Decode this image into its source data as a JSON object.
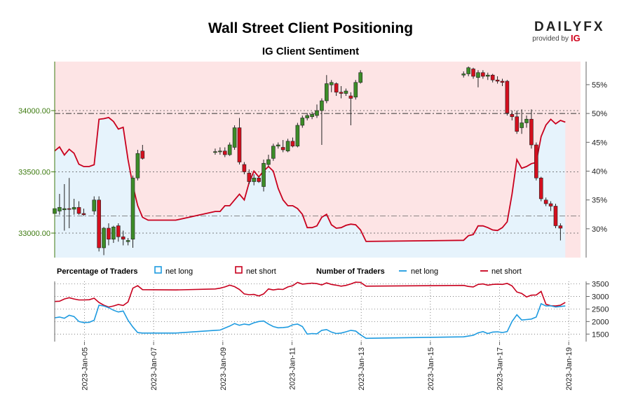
{
  "brand": {
    "name": "DAILYFX",
    "provided_by": "provided by",
    "ig": "IG",
    "color": "#d0021b"
  },
  "chart_data": {
    "type": "candlestick+line",
    "title": "Wall Street Client Positioning",
    "subtitle": "IG Client Sentiment",
    "price_axis": {
      "min": 32800,
      "max": 34400,
      "ticks": [
        33000,
        33500,
        34000
      ],
      "tick_labels": [
        "33000.00",
        "33500.00",
        "34000.00"
      ]
    },
    "sentiment_axis": {
      "min": 25,
      "max": 59,
      "ticks": [
        30,
        35,
        40,
        45,
        50,
        55
      ],
      "tick_labels": [
        "30%",
        "35%",
        "40%",
        "45%",
        "50%",
        "55%"
      ]
    },
    "count_axis": {
      "min": 1200,
      "max": 3600,
      "ticks": [
        1500,
        2000,
        2500,
        3000,
        3500
      ],
      "tick_labels": [
        "1500",
        "2000",
        "2500",
        "3000",
        "3500"
      ]
    },
    "x_range": [
      0,
      15.2
    ],
    "date_labels": [
      "2023-Jan-05",
      "2023-Jan-07",
      "2023-Jan-09",
      "2023-Jan-11",
      "2023-Jan-13",
      "2023-Jan-15",
      "2023-Jan-17",
      "2023-Jan-19"
    ],
    "date_positions": [
      0.86,
      2.86,
      4.86,
      6.86,
      8.86,
      10.86,
      12.86,
      14.86
    ],
    "candles": [
      {
        "t": 0.0,
        "o": 33160,
        "h": 33220,
        "l": 33120,
        "c": 33200
      },
      {
        "t": 0.14,
        "o": 33180,
        "h": 33320,
        "l": 33150,
        "c": 33210
      },
      {
        "t": 0.28,
        "o": 33190,
        "h": 33400,
        "l": 33020,
        "c": 33200
      },
      {
        "t": 0.42,
        "o": 33200,
        "h": 33450,
        "l": 33040,
        "c": 33195
      },
      {
        "t": 0.56,
        "o": 33195,
        "h": 33280,
        "l": 33150,
        "c": 33210
      },
      {
        "t": 0.7,
        "o": 33210,
        "h": 33260,
        "l": 33150,
        "c": 33160
      },
      {
        "t": 0.84,
        "o": 33160,
        "h": 33200,
        "l": 33140,
        "c": 33150
      },
      {
        "t": 1.14,
        "o": 33180,
        "h": 33300,
        "l": 33150,
        "c": 33270
      },
      {
        "t": 1.28,
        "o": 33270,
        "h": 33300,
        "l": 32850,
        "c": 32880
      },
      {
        "t": 1.42,
        "o": 32880,
        "h": 33050,
        "l": 32820,
        "c": 33040
      },
      {
        "t": 1.56,
        "o": 33040,
        "h": 33080,
        "l": 32900,
        "c": 32950
      },
      {
        "t": 1.7,
        "o": 32950,
        "h": 33060,
        "l": 32920,
        "c": 33050
      },
      {
        "t": 1.84,
        "o": 33060,
        "h": 33080,
        "l": 32930,
        "c": 32970
      },
      {
        "t": 1.98,
        "o": 32970,
        "h": 33020,
        "l": 32900,
        "c": 32950
      },
      {
        "t": 2.12,
        "o": 32930,
        "h": 32960,
        "l": 32900,
        "c": 32940
      },
      {
        "t": 2.26,
        "o": 32950,
        "h": 33470,
        "l": 32880,
        "c": 33450
      },
      {
        "t": 2.4,
        "o": 33450,
        "h": 33680,
        "l": 33430,
        "c": 33650
      },
      {
        "t": 2.54,
        "o": 33670,
        "h": 33720,
        "l": 33600,
        "c": 33610
      },
      {
        "t": 4.64,
        "o": 33660,
        "h": 33690,
        "l": 33640,
        "c": 33665
      },
      {
        "t": 4.78,
        "o": 33665,
        "h": 33700,
        "l": 33640,
        "c": 33670
      },
      {
        "t": 4.92,
        "o": 33670,
        "h": 33700,
        "l": 33620,
        "c": 33640
      },
      {
        "t": 5.06,
        "o": 33640,
        "h": 33740,
        "l": 33630,
        "c": 33720
      },
      {
        "t": 5.2,
        "o": 33700,
        "h": 33880,
        "l": 33680,
        "c": 33860
      },
      {
        "t": 5.34,
        "o": 33860,
        "h": 33940,
        "l": 33560,
        "c": 33580
      },
      {
        "t": 5.48,
        "o": 33560,
        "h": 33580,
        "l": 33480,
        "c": 33500
      },
      {
        "t": 5.62,
        "o": 33490,
        "h": 33520,
        "l": 33400,
        "c": 33420
      },
      {
        "t": 5.76,
        "o": 33420,
        "h": 33480,
        "l": 33390,
        "c": 33450
      },
      {
        "t": 5.9,
        "o": 33450,
        "h": 33460,
        "l": 33410,
        "c": 33420
      },
      {
        "t": 6.04,
        "o": 33380,
        "h": 33600,
        "l": 33340,
        "c": 33570
      },
      {
        "t": 6.18,
        "o": 33560,
        "h": 33640,
        "l": 33540,
        "c": 33600
      },
      {
        "t": 6.32,
        "o": 33610,
        "h": 33730,
        "l": 33590,
        "c": 33710
      },
      {
        "t": 6.46,
        "o": 33710,
        "h": 33740,
        "l": 33690,
        "c": 33720
      },
      {
        "t": 6.6,
        "o": 33700,
        "h": 33760,
        "l": 33660,
        "c": 33680
      },
      {
        "t": 6.74,
        "o": 33670,
        "h": 33770,
        "l": 33660,
        "c": 33750
      },
      {
        "t": 6.88,
        "o": 33750,
        "h": 33780,
        "l": 33700,
        "c": 33710
      },
      {
        "t": 7.02,
        "o": 33710,
        "h": 33900,
        "l": 33700,
        "c": 33880
      },
      {
        "t": 7.16,
        "o": 33880,
        "h": 33960,
        "l": 33860,
        "c": 33940
      },
      {
        "t": 7.3,
        "o": 33940,
        "h": 33980,
        "l": 33920,
        "c": 33960
      },
      {
        "t": 7.44,
        "o": 33950,
        "h": 33990,
        "l": 33930,
        "c": 33970
      },
      {
        "t": 7.58,
        "o": 33960,
        "h": 34050,
        "l": 33940,
        "c": 34000
      },
      {
        "t": 7.72,
        "o": 34000,
        "h": 34100,
        "l": 33720,
        "c": 34080
      },
      {
        "t": 7.86,
        "o": 34080,
        "h": 34290,
        "l": 34060,
        "c": 34220
      },
      {
        "t": 8.0,
        "o": 34210,
        "h": 34250,
        "l": 34150,
        "c": 34230
      },
      {
        "t": 8.14,
        "o": 34220,
        "h": 34230,
        "l": 34120,
        "c": 34150
      },
      {
        "t": 8.28,
        "o": 34150,
        "h": 34200,
        "l": 34100,
        "c": 34140
      },
      {
        "t": 8.42,
        "o": 34140,
        "h": 34180,
        "l": 34120,
        "c": 34160
      },
      {
        "t": 8.56,
        "o": 34120,
        "h": 34150,
        "l": 33880,
        "c": 34100
      },
      {
        "t": 8.7,
        "o": 34110,
        "h": 34250,
        "l": 34090,
        "c": 34230
      },
      {
        "t": 8.84,
        "o": 34230,
        "h": 34330,
        "l": 34220,
        "c": 34310
      },
      {
        "t": 11.82,
        "o": 34290,
        "h": 34320,
        "l": 34270,
        "c": 34300
      },
      {
        "t": 11.96,
        "o": 34300,
        "h": 34360,
        "l": 34280,
        "c": 34350
      },
      {
        "t": 12.1,
        "o": 34340,
        "h": 34350,
        "l": 34260,
        "c": 34280
      },
      {
        "t": 12.24,
        "o": 34270,
        "h": 34330,
        "l": 34190,
        "c": 34310
      },
      {
        "t": 12.38,
        "o": 34310,
        "h": 34330,
        "l": 34260,
        "c": 34280
      },
      {
        "t": 12.52,
        "o": 34280,
        "h": 34310,
        "l": 34250,
        "c": 34290
      },
      {
        "t": 12.66,
        "o": 34290,
        "h": 34300,
        "l": 34230,
        "c": 34250
      },
      {
        "t": 12.8,
        "o": 34250,
        "h": 34280,
        "l": 34220,
        "c": 34240
      },
      {
        "t": 12.94,
        "o": 34240,
        "h": 34260,
        "l": 34200,
        "c": 34230
      },
      {
        "t": 13.08,
        "o": 34240,
        "h": 34250,
        "l": 33960,
        "c": 33980
      },
      {
        "t": 13.22,
        "o": 33970,
        "h": 34000,
        "l": 33920,
        "c": 33950
      },
      {
        "t": 13.36,
        "o": 33950,
        "h": 34000,
        "l": 33810,
        "c": 33830
      },
      {
        "t": 13.5,
        "o": 33860,
        "h": 34010,
        "l": 33810,
        "c": 33900
      },
      {
        "t": 13.64,
        "o": 33900,
        "h": 33960,
        "l": 33860,
        "c": 33930
      },
      {
        "t": 13.78,
        "o": 33930,
        "h": 34010,
        "l": 33690,
        "c": 33720
      },
      {
        "t": 13.92,
        "o": 33720,
        "h": 33740,
        "l": 33430,
        "c": 33450
      },
      {
        "t": 14.06,
        "o": 33450,
        "h": 33460,
        "l": 33260,
        "c": 33280
      },
      {
        "t": 14.2,
        "o": 33270,
        "h": 33290,
        "l": 33220,
        "c": 33240
      },
      {
        "t": 14.34,
        "o": 33240,
        "h": 33260,
        "l": 33180,
        "c": 33220
      },
      {
        "t": 14.48,
        "o": 33220,
        "h": 33240,
        "l": 33040,
        "c": 33060
      },
      {
        "t": 14.62,
        "o": 33060,
        "h": 33080,
        "l": 32940,
        "c": 33040
      }
    ],
    "sentiment_long_pct": [
      [
        0,
        43.5
      ],
      [
        0.14,
        44.2
      ],
      [
        0.28,
        42.8
      ],
      [
        0.42,
        43.8
      ],
      [
        0.56,
        43.1
      ],
      [
        0.7,
        41.2
      ],
      [
        0.84,
        40.8
      ],
      [
        1.0,
        40.8
      ],
      [
        1.14,
        41.1
      ],
      [
        1.28,
        49
      ],
      [
        1.42,
        49.1
      ],
      [
        1.56,
        49.3
      ],
      [
        1.7,
        48.6
      ],
      [
        1.84,
        47.3
      ],
      [
        1.98,
        47.6
      ],
      [
        2.12,
        42
      ],
      [
        2.26,
        37.5
      ],
      [
        2.4,
        34
      ],
      [
        2.54,
        32
      ],
      [
        2.7,
        31.5
      ],
      [
        3.5,
        31.5
      ],
      [
        4.64,
        33
      ],
      [
        4.78,
        33
      ],
      [
        4.92,
        34
      ],
      [
        5.06,
        34
      ],
      [
        5.2,
        35
      ],
      [
        5.34,
        36
      ],
      [
        5.48,
        35
      ],
      [
        5.62,
        38
      ],
      [
        5.76,
        40
      ],
      [
        5.9,
        39
      ],
      [
        6.04,
        40
      ],
      [
        6.18,
        40.8
      ],
      [
        6.32,
        40
      ],
      [
        6.46,
        37
      ],
      [
        6.6,
        35
      ],
      [
        6.74,
        34
      ],
      [
        6.88,
        34
      ],
      [
        7.02,
        33.5
      ],
      [
        7.16,
        32.5
      ],
      [
        7.3,
        30.2
      ],
      [
        7.44,
        30.2
      ],
      [
        7.58,
        30.5
      ],
      [
        7.72,
        32
      ],
      [
        7.86,
        32.5
      ],
      [
        8.0,
        30.7
      ],
      [
        8.14,
        30.1
      ],
      [
        8.28,
        30.2
      ],
      [
        8.42,
        30.6
      ],
      [
        8.56,
        30.8
      ],
      [
        8.7,
        30.7
      ],
      [
        8.84,
        29.8
      ],
      [
        9.0,
        27.8
      ],
      [
        11.82,
        28
      ],
      [
        11.96,
        28.8
      ],
      [
        12.1,
        29
      ],
      [
        12.24,
        30.5
      ],
      [
        12.38,
        30.5
      ],
      [
        12.52,
        30.2
      ],
      [
        12.66,
        29.8
      ],
      [
        12.8,
        29.7
      ],
      [
        12.94,
        30.2
      ],
      [
        13.08,
        31.2
      ],
      [
        13.22,
        36
      ],
      [
        13.36,
        42
      ],
      [
        13.5,
        40.5
      ],
      [
        13.64,
        40.8
      ],
      [
        13.78,
        41.3
      ],
      [
        13.92,
        41.5
      ],
      [
        14.06,
        46
      ],
      [
        14.2,
        48
      ],
      [
        14.34,
        49
      ],
      [
        14.48,
        48.2
      ],
      [
        14.62,
        48.8
      ],
      [
        14.76,
        48.5
      ]
    ],
    "traders_long": [
      [
        0,
        2150
      ],
      [
        0.14,
        2180
      ],
      [
        0.28,
        2130
      ],
      [
        0.42,
        2250
      ],
      [
        0.56,
        2200
      ],
      [
        0.7,
        2000
      ],
      [
        0.84,
        1960
      ],
      [
        1.0,
        1970
      ],
      [
        1.14,
        2050
      ],
      [
        1.28,
        2650
      ],
      [
        1.42,
        2620
      ],
      [
        1.56,
        2550
      ],
      [
        1.7,
        2450
      ],
      [
        1.84,
        2380
      ],
      [
        1.98,
        2420
      ],
      [
        2.12,
        2050
      ],
      [
        2.26,
        1780
      ],
      [
        2.4,
        1560
      ],
      [
        2.54,
        1540
      ],
      [
        3.5,
        1540
      ],
      [
        4.64,
        1650
      ],
      [
        4.78,
        1660
      ],
      [
        4.92,
        1740
      ],
      [
        5.06,
        1820
      ],
      [
        5.2,
        1920
      ],
      [
        5.34,
        1850
      ],
      [
        5.48,
        1900
      ],
      [
        5.62,
        1870
      ],
      [
        5.76,
        1950
      ],
      [
        5.9,
        2000
      ],
      [
        6.04,
        2020
      ],
      [
        6.18,
        1900
      ],
      [
        6.32,
        1800
      ],
      [
        6.46,
        1750
      ],
      [
        6.6,
        1760
      ],
      [
        6.74,
        1780
      ],
      [
        6.88,
        1870
      ],
      [
        7.02,
        1900
      ],
      [
        7.16,
        1800
      ],
      [
        7.3,
        1500
      ],
      [
        7.44,
        1520
      ],
      [
        7.58,
        1510
      ],
      [
        7.72,
        1650
      ],
      [
        7.86,
        1680
      ],
      [
        8.0,
        1580
      ],
      [
        8.14,
        1520
      ],
      [
        8.28,
        1540
      ],
      [
        8.42,
        1590
      ],
      [
        8.56,
        1650
      ],
      [
        8.7,
        1620
      ],
      [
        8.84,
        1470
      ],
      [
        9.0,
        1330
      ],
      [
        11.82,
        1390
      ],
      [
        11.96,
        1420
      ],
      [
        12.1,
        1450
      ],
      [
        12.24,
        1550
      ],
      [
        12.38,
        1600
      ],
      [
        12.52,
        1520
      ],
      [
        12.66,
        1580
      ],
      [
        12.8,
        1590
      ],
      [
        12.94,
        1560
      ],
      [
        13.08,
        1600
      ],
      [
        13.22,
        2000
      ],
      [
        13.36,
        2270
      ],
      [
        13.5,
        2060
      ],
      [
        13.64,
        2080
      ],
      [
        13.78,
        2100
      ],
      [
        13.92,
        2180
      ],
      [
        14.06,
        2710
      ],
      [
        14.2,
        2620
      ],
      [
        14.34,
        2630
      ],
      [
        14.48,
        2580
      ],
      [
        14.62,
        2600
      ],
      [
        14.76,
        2620
      ]
    ],
    "traders_short": [
      [
        0,
        2800
      ],
      [
        0.14,
        2810
      ],
      [
        0.28,
        2900
      ],
      [
        0.42,
        2950
      ],
      [
        0.56,
        2900
      ],
      [
        0.7,
        2860
      ],
      [
        0.84,
        2860
      ],
      [
        1.0,
        2870
      ],
      [
        1.14,
        2930
      ],
      [
        1.28,
        2760
      ],
      [
        1.42,
        2650
      ],
      [
        1.56,
        2580
      ],
      [
        1.7,
        2620
      ],
      [
        1.84,
        2680
      ],
      [
        1.98,
        2640
      ],
      [
        2.12,
        2780
      ],
      [
        2.26,
        3330
      ],
      [
        2.4,
        3430
      ],
      [
        2.54,
        3270
      ],
      [
        3.5,
        3260
      ],
      [
        4.64,
        3300
      ],
      [
        4.78,
        3330
      ],
      [
        4.92,
        3380
      ],
      [
        5.06,
        3450
      ],
      [
        5.2,
        3390
      ],
      [
        5.34,
        3280
      ],
      [
        5.48,
        3100
      ],
      [
        5.62,
        3070
      ],
      [
        5.76,
        3080
      ],
      [
        5.9,
        3020
      ],
      [
        6.04,
        3100
      ],
      [
        6.18,
        3300
      ],
      [
        6.32,
        3260
      ],
      [
        6.46,
        3290
      ],
      [
        6.6,
        3280
      ],
      [
        6.74,
        3380
      ],
      [
        6.88,
        3430
      ],
      [
        7.02,
        3560
      ],
      [
        7.16,
        3490
      ],
      [
        7.3,
        3510
      ],
      [
        7.44,
        3530
      ],
      [
        7.58,
        3510
      ],
      [
        7.72,
        3460
      ],
      [
        7.86,
        3540
      ],
      [
        8.0,
        3480
      ],
      [
        8.14,
        3450
      ],
      [
        8.28,
        3410
      ],
      [
        8.42,
        3440
      ],
      [
        8.56,
        3500
      ],
      [
        8.7,
        3570
      ],
      [
        8.84,
        3560
      ],
      [
        9.0,
        3410
      ],
      [
        11.82,
        3440
      ],
      [
        11.96,
        3400
      ],
      [
        12.1,
        3380
      ],
      [
        12.24,
        3480
      ],
      [
        12.38,
        3500
      ],
      [
        12.52,
        3450
      ],
      [
        12.66,
        3480
      ],
      [
        12.8,
        3490
      ],
      [
        12.94,
        3480
      ],
      [
        13.08,
        3520
      ],
      [
        13.22,
        3420
      ],
      [
        13.36,
        3180
      ],
      [
        13.5,
        3120
      ],
      [
        13.64,
        2980
      ],
      [
        13.78,
        3050
      ],
      [
        13.92,
        3060
      ],
      [
        14.06,
        3200
      ],
      [
        14.2,
        2690
      ],
      [
        14.34,
        2630
      ],
      [
        14.48,
        2620
      ],
      [
        14.62,
        2650
      ],
      [
        14.76,
        2760
      ]
    ],
    "legend": {
      "pct_header": "Percentage of Traders",
      "num_header": "Number of Traders",
      "long_label": "net long",
      "short_label": "net short"
    },
    "colors": {
      "long": "#1e9be0",
      "short": "#c8001e",
      "long_fill": "#e6f3fc",
      "short_fill": "#fde4e5",
      "up": "#3c8c28",
      "down": "#d40f1e",
      "price_axis": "#3d7a0f",
      "grid": "#555555"
    }
  }
}
